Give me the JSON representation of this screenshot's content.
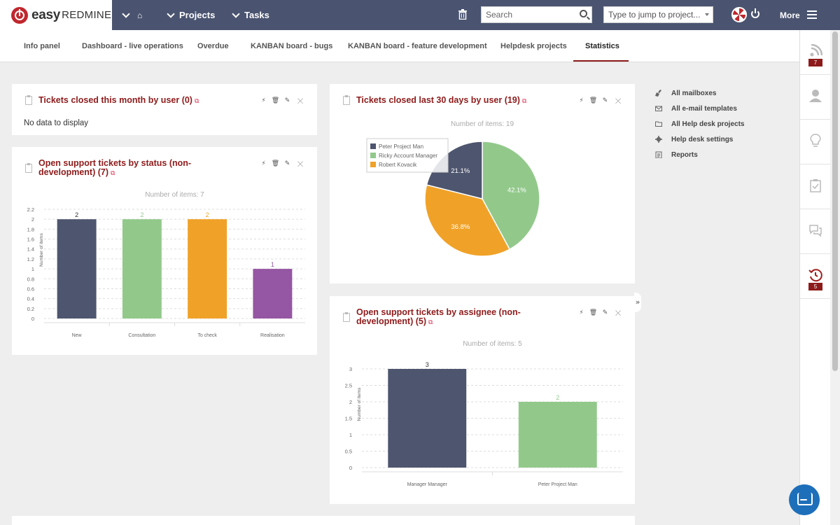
{
  "header": {
    "logo_easy": "easy",
    "logo_redmine": "REDMINE",
    "nav": [
      {
        "label": ""
      },
      {
        "label": "Projects"
      },
      {
        "label": "Tasks"
      }
    ],
    "search_placeholder": "Search",
    "jump_placeholder": "Type to jump to project...",
    "more_label": "More"
  },
  "tabs": [
    {
      "label": "Info panel",
      "active": false
    },
    {
      "label": "Dashboard - live operations",
      "active": false
    },
    {
      "label": "Overdue",
      "active": false
    },
    {
      "label": "KANBAN board - bugs",
      "active": false
    },
    {
      "label": "KANBAN board - feature development",
      "active": false
    },
    {
      "label": "Helpdesk projects",
      "active": false
    },
    {
      "label": "Statistics",
      "active": true
    }
  ],
  "rail": {
    "items": [
      {
        "icon": "rss-icon",
        "badge": "7"
      },
      {
        "icon": "user-icon",
        "badge": ""
      },
      {
        "icon": "lightbulb-icon",
        "badge": ""
      },
      {
        "icon": "checklist-icon",
        "badge": ""
      },
      {
        "icon": "chat-icon",
        "badge": ""
      },
      {
        "icon": "timer-icon",
        "badge": "5"
      }
    ]
  },
  "panels": {
    "closed_month": {
      "title": "Tickets closed this month by user (0)",
      "empty_text": "No data to display"
    },
    "open_status": {
      "title_line1": "Open support tickets by status (non-",
      "title_line2": "development) (7)",
      "items_label": "Number of items: 7"
    },
    "closed_30": {
      "title": "Tickets closed last 30 days by user (19)",
      "items_label": "Number of items: 19"
    },
    "open_assignee": {
      "title_line1": "Open support tickets by assignee (non-",
      "title_line2": "development) (5)",
      "items_label": "Number of items: 5"
    }
  },
  "sidebar": {
    "links": [
      {
        "label": "All mailboxes",
        "icon": "broom-icon"
      },
      {
        "label": "All e-mail templates",
        "icon": "envelope-icon"
      },
      {
        "label": "All Help desk projects",
        "icon": "folder-icon"
      },
      {
        "label": "Help desk settings",
        "icon": "gear-icon"
      },
      {
        "label": "Reports",
        "icon": "report-icon"
      }
    ]
  },
  "chart_data": [
    {
      "type": "bar",
      "ylabel": "Number of items",
      "categories": [
        "New",
        "Consultation",
        "To check",
        "Realisation"
      ],
      "values": [
        2,
        2,
        2,
        1
      ],
      "colors": [
        "#4e556e",
        "#92c98b",
        "#f0a228",
        "#9556a3"
      ],
      "ylim": [
        0,
        2.2
      ],
      "yticks": [
        "0",
        "0.2",
        "0.4",
        "0.6",
        "0.8",
        "1",
        "1.2",
        "1.4",
        "1.6",
        "1.8",
        "2",
        "2.2"
      ]
    },
    {
      "type": "pie",
      "labels": [
        "Peter Project Man",
        "Ricky Account Manager",
        "Robert Kovacik"
      ],
      "values": [
        21.1,
        42.1,
        36.8
      ],
      "value_labels": [
        "21.1%",
        "42.1%",
        "36.8%"
      ],
      "colors": [
        "#4e556e",
        "#92c98b",
        "#f0a228"
      ],
      "legend": "top-left"
    },
    {
      "type": "bar",
      "ylabel": "Number of items",
      "categories": [
        "Manager Manager",
        "Peter Project Man"
      ],
      "values": [
        3,
        2
      ],
      "colors": [
        "#4e556e",
        "#92c98b"
      ],
      "ylim": [
        0,
        3
      ],
      "yticks": [
        "0",
        "0.5",
        "1",
        "1.5",
        "2",
        "2.5",
        "3"
      ]
    }
  ]
}
